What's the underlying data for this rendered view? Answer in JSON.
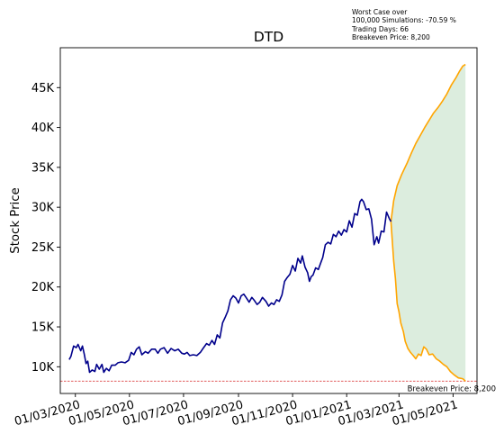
{
  "chart_data": {
    "type": "line",
    "title": "DTD",
    "xlabel": "",
    "ylabel": "Stock Price",
    "x_tick_labels": [
      "01/03/2020",
      "01/05/2020",
      "01/07/2020",
      "01/09/2020",
      "01/11/2020",
      "01/01/2021",
      "01/03/2021",
      "01/05/2021"
    ],
    "x_tick_dates": [
      "2020-03-01",
      "2020-05-01",
      "2020-07-01",
      "2020-09-01",
      "2020-11-01",
      "2021-01-01",
      "2021-03-01",
      "2021-05-01"
    ],
    "xlim": [
      "2020-02-13",
      "2021-05-28"
    ],
    "y_tick_values": [
      10000,
      15000,
      20000,
      25000,
      30000,
      35000,
      40000,
      45000
    ],
    "y_tick_labels": [
      "10K",
      "15K",
      "20K",
      "25K",
      "30K",
      "35K",
      "40K",
      "45K"
    ],
    "ylim": [
      6650,
      50000
    ],
    "grid": false,
    "annotation_lines": [
      "Worst Case over",
      "100,000 Simulations: -70.59 %",
      "Trading Days: 66",
      "Breakeven Price: 8,200"
    ],
    "breakeven": {
      "value": 8200,
      "label": "Breakeven Price: 8,200"
    },
    "colors": {
      "history": "#00008b",
      "projection": "#ffa500",
      "band": "#dcedde",
      "breakeven": "#d62728"
    },
    "series": [
      {
        "role": "history",
        "points": [
          [
            "2020-02-23",
            10900
          ],
          [
            "2020-02-25",
            11300
          ],
          [
            "2020-02-28",
            12600
          ],
          [
            "2020-03-02",
            12400
          ],
          [
            "2020-03-04",
            12800
          ],
          [
            "2020-03-07",
            12000
          ],
          [
            "2020-03-09",
            12600
          ],
          [
            "2020-03-11",
            11600
          ],
          [
            "2020-03-13",
            10400
          ],
          [
            "2020-03-15",
            10700
          ],
          [
            "2020-03-17",
            9300
          ],
          [
            "2020-03-20",
            9600
          ],
          [
            "2020-03-23",
            9400
          ],
          [
            "2020-03-25",
            10300
          ],
          [
            "2020-03-28",
            9700
          ],
          [
            "2020-03-31",
            10300
          ],
          [
            "2020-04-02",
            9300
          ],
          [
            "2020-04-05",
            9800
          ],
          [
            "2020-04-08",
            9500
          ],
          [
            "2020-04-11",
            10200
          ],
          [
            "2020-04-15",
            10200
          ],
          [
            "2020-04-18",
            10500
          ],
          [
            "2020-04-22",
            10600
          ],
          [
            "2020-04-26",
            10500
          ],
          [
            "2020-04-30",
            10800
          ],
          [
            "2020-05-03",
            11800
          ],
          [
            "2020-05-06",
            11500
          ],
          [
            "2020-05-09",
            12200
          ],
          [
            "2020-05-12",
            12500
          ],
          [
            "2020-05-15",
            11500
          ],
          [
            "2020-05-19",
            11900
          ],
          [
            "2020-05-22",
            11700
          ],
          [
            "2020-05-26",
            12200
          ],
          [
            "2020-05-30",
            12200
          ],
          [
            "2020-06-02",
            11700
          ],
          [
            "2020-06-05",
            12200
          ],
          [
            "2020-06-09",
            12400
          ],
          [
            "2020-06-13",
            11700
          ],
          [
            "2020-06-17",
            12300
          ],
          [
            "2020-06-21",
            12000
          ],
          [
            "2020-06-25",
            12200
          ],
          [
            "2020-06-29",
            11700
          ],
          [
            "2020-07-02",
            11600
          ],
          [
            "2020-07-05",
            11800
          ],
          [
            "2020-07-08",
            11400
          ],
          [
            "2020-07-12",
            11500
          ],
          [
            "2020-07-16",
            11400
          ],
          [
            "2020-07-20",
            11800
          ],
          [
            "2020-07-23",
            12300
          ],
          [
            "2020-07-27",
            12900
          ],
          [
            "2020-07-30",
            12700
          ],
          [
            "2020-08-02",
            13300
          ],
          [
            "2020-08-05",
            12800
          ],
          [
            "2020-08-08",
            14000
          ],
          [
            "2020-08-11",
            13600
          ],
          [
            "2020-08-14",
            15500
          ],
          [
            "2020-08-17",
            16200
          ],
          [
            "2020-08-20",
            17000
          ],
          [
            "2020-08-23",
            18400
          ],
          [
            "2020-08-26",
            18900
          ],
          [
            "2020-08-29",
            18600
          ],
          [
            "2020-09-01",
            18000
          ],
          [
            "2020-09-04",
            18900
          ],
          [
            "2020-09-07",
            19100
          ],
          [
            "2020-09-10",
            18600
          ],
          [
            "2020-09-13",
            18100
          ],
          [
            "2020-09-16",
            18700
          ],
          [
            "2020-09-19",
            18300
          ],
          [
            "2020-09-22",
            17800
          ],
          [
            "2020-09-25",
            18100
          ],
          [
            "2020-09-28",
            18700
          ],
          [
            "2020-10-02",
            18200
          ],
          [
            "2020-10-05",
            17600
          ],
          [
            "2020-10-08",
            18000
          ],
          [
            "2020-10-11",
            17800
          ],
          [
            "2020-10-14",
            18400
          ],
          [
            "2020-10-17",
            18200
          ],
          [
            "2020-10-20",
            19000
          ],
          [
            "2020-10-23",
            20700
          ],
          [
            "2020-10-26",
            21200
          ],
          [
            "2020-10-29",
            21600
          ],
          [
            "2020-11-01",
            22700
          ],
          [
            "2020-11-04",
            22000
          ],
          [
            "2020-11-07",
            23600
          ],
          [
            "2020-11-10",
            23000
          ],
          [
            "2020-11-12",
            23900
          ],
          [
            "2020-11-15",
            22500
          ],
          [
            "2020-11-18",
            21800
          ],
          [
            "2020-11-20",
            20700
          ],
          [
            "2020-11-22",
            21300
          ],
          [
            "2020-11-24",
            21500
          ],
          [
            "2020-11-27",
            22400
          ],
          [
            "2020-11-30",
            22200
          ],
          [
            "2020-12-03",
            23100
          ],
          [
            "2020-12-05",
            23700
          ],
          [
            "2020-12-08",
            25300
          ],
          [
            "2020-12-11",
            25600
          ],
          [
            "2020-12-14",
            25400
          ],
          [
            "2020-12-17",
            26600
          ],
          [
            "2020-12-20",
            26300
          ],
          [
            "2020-12-23",
            27000
          ],
          [
            "2020-12-26",
            26500
          ],
          [
            "2020-12-29",
            27200
          ],
          [
            "2021-01-01",
            26900
          ],
          [
            "2021-01-04",
            28300
          ],
          [
            "2021-01-07",
            27500
          ],
          [
            "2021-01-10",
            29200
          ],
          [
            "2021-01-13",
            29000
          ],
          [
            "2021-01-16",
            30700
          ],
          [
            "2021-01-18",
            31000
          ],
          [
            "2021-01-20",
            30700
          ],
          [
            "2021-01-23",
            29700
          ],
          [
            "2021-01-26",
            29800
          ],
          [
            "2021-01-29",
            28500
          ],
          [
            "2021-02-01",
            25300
          ],
          [
            "2021-02-04",
            26300
          ],
          [
            "2021-02-06",
            25500
          ],
          [
            "2021-02-09",
            27000
          ],
          [
            "2021-02-12",
            26900
          ],
          [
            "2021-02-15",
            29400
          ],
          [
            "2021-02-18",
            28600
          ],
          [
            "2021-02-20",
            28200
          ]
        ]
      },
      {
        "role": "upper",
        "points": [
          [
            "2021-02-20",
            28200
          ],
          [
            "2021-02-23",
            30800
          ],
          [
            "2021-02-27",
            32700
          ],
          [
            "2021-03-04",
            34100
          ],
          [
            "2021-03-10",
            35500
          ],
          [
            "2021-03-15",
            36800
          ],
          [
            "2021-03-20",
            38000
          ],
          [
            "2021-03-25",
            39000
          ],
          [
            "2021-03-30",
            40000
          ],
          [
            "2021-04-04",
            40900
          ],
          [
            "2021-04-09",
            41800
          ],
          [
            "2021-04-14",
            42500
          ],
          [
            "2021-04-19",
            43300
          ],
          [
            "2021-04-24",
            44200
          ],
          [
            "2021-04-29",
            45300
          ],
          [
            "2021-05-04",
            46200
          ],
          [
            "2021-05-08",
            47000
          ],
          [
            "2021-05-12",
            47700
          ],
          [
            "2021-05-15",
            47900
          ]
        ]
      },
      {
        "role": "lower",
        "points": [
          [
            "2021-02-20",
            28200
          ],
          [
            "2021-02-23",
            23300
          ],
          [
            "2021-02-25",
            21000
          ],
          [
            "2021-02-27",
            17900
          ],
          [
            "2021-03-01",
            16900
          ],
          [
            "2021-03-03",
            15500
          ],
          [
            "2021-03-06",
            14400
          ],
          [
            "2021-03-08",
            13200
          ],
          [
            "2021-03-11",
            12300
          ],
          [
            "2021-03-14",
            11800
          ],
          [
            "2021-03-17",
            11400
          ],
          [
            "2021-03-20",
            11000
          ],
          [
            "2021-03-23",
            11600
          ],
          [
            "2021-03-26",
            11400
          ],
          [
            "2021-03-29",
            12500
          ],
          [
            "2021-04-01",
            12200
          ],
          [
            "2021-04-04",
            11500
          ],
          [
            "2021-04-08",
            11600
          ],
          [
            "2021-04-12",
            11000
          ],
          [
            "2021-04-16",
            10700
          ],
          [
            "2021-04-20",
            10300
          ],
          [
            "2021-04-24",
            10000
          ],
          [
            "2021-04-28",
            9400
          ],
          [
            "2021-05-02",
            9000
          ],
          [
            "2021-05-07",
            8600
          ],
          [
            "2021-05-12",
            8500
          ],
          [
            "2021-05-15",
            8200
          ]
        ]
      }
    ]
  }
}
